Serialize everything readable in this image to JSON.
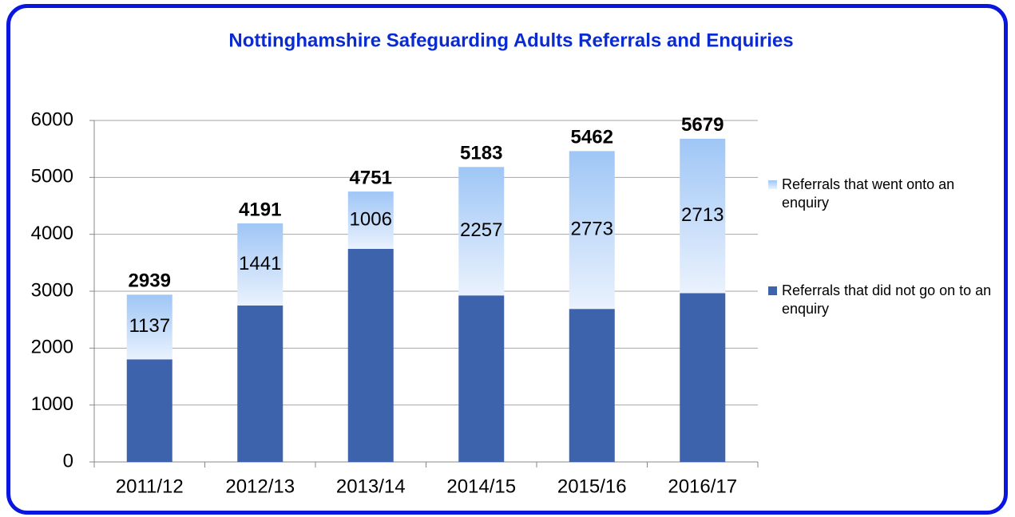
{
  "chart_data": {
    "type": "stacked_bar",
    "title": "Nottinghamshire Safeguarding Adults Referrals and Enquiries",
    "categories": [
      "2011/12",
      "2012/13",
      "2013/14",
      "2014/15",
      "2015/16",
      "2016/17"
    ],
    "series": [
      {
        "name": "Referrals that did not go on to an enquiry",
        "color": "#3c63ab",
        "values": [
          1802,
          2750,
          3745,
          2926,
          2689,
          2966
        ]
      },
      {
        "name": "Referrals that went onto an enquiry",
        "color": "#9fc6f6",
        "values": [
          1137,
          1441,
          1006,
          2257,
          2773,
          2713
        ]
      }
    ],
    "totals": [
      2939,
      4191,
      4751,
      5183,
      5462,
      5679
    ],
    "ylim": [
      0,
      6000
    ],
    "yticks": [
      0,
      1000,
      2000,
      3000,
      4000,
      5000,
      6000
    ],
    "grid": true
  }
}
